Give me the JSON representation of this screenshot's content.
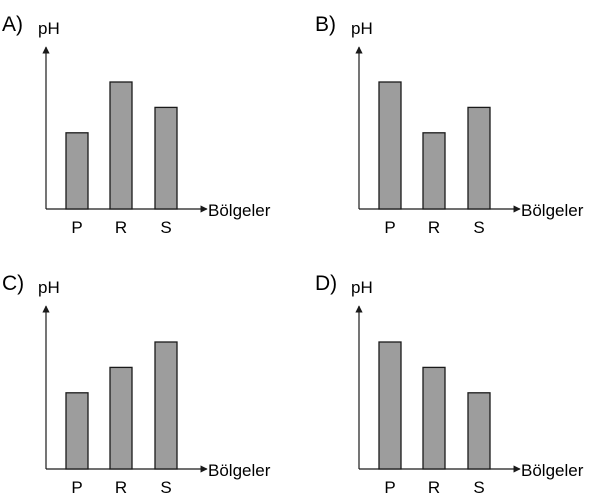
{
  "colors": {
    "bar_fill": "#9d9d9d",
    "bar_stroke": "#1a1a1a",
    "axis": "#1a1a1a"
  },
  "chart_data": [
    {
      "option": "A)",
      "type": "bar",
      "ylabel": "pH",
      "xlabel": "Bölgeler",
      "categories": [
        "P",
        "R",
        "S"
      ],
      "values": [
        3,
        5,
        4
      ]
    },
    {
      "option": "B)",
      "type": "bar",
      "ylabel": "pH",
      "xlabel": "Bölgeler",
      "categories": [
        "P",
        "R",
        "S"
      ],
      "values": [
        5,
        3,
        4
      ]
    },
    {
      "option": "C)",
      "type": "bar",
      "ylabel": "pH",
      "xlabel": "Bölgeler",
      "categories": [
        "P",
        "R",
        "S"
      ],
      "values": [
        3,
        4,
        5
      ]
    },
    {
      "option": "D)",
      "type": "bar",
      "ylabel": "pH",
      "xlabel": "Bölgeler",
      "categories": [
        "P",
        "R",
        "S"
      ],
      "values": [
        5,
        4,
        3
      ]
    }
  ]
}
